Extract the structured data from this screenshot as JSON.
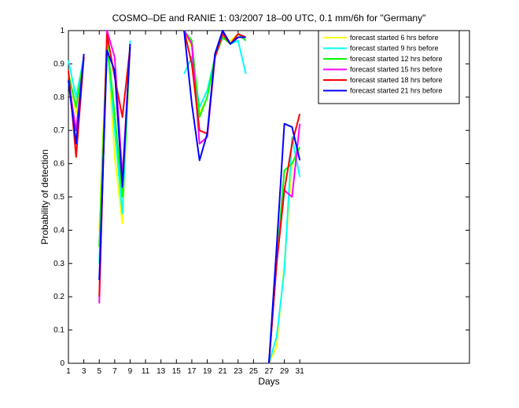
{
  "chart_data": {
    "type": "line",
    "title": "COSMO–DE and RANIE 1: 03/2007 18–00 UTC, 0.1 mm/6h for \"Germany\"",
    "x_label": "Days",
    "y_label": "Probability of detection",
    "x": [
      1,
      2,
      3,
      4,
      5,
      6,
      7,
      8,
      9,
      10,
      11,
      12,
      13,
      14,
      15,
      16,
      17,
      18,
      19,
      20,
      21,
      22,
      23,
      24,
      25,
      26,
      27,
      28,
      29,
      30,
      31
    ],
    "xlim": [
      1,
      53
    ],
    "xticks": [
      1,
      3,
      5,
      7,
      9,
      11,
      13,
      15,
      17,
      19,
      21,
      23,
      25,
      27,
      29,
      31
    ],
    "ylim": [
      0,
      1
    ],
    "yticks": [
      0,
      0.1,
      0.2,
      0.3,
      0.4,
      0.5,
      0.6,
      0.7,
      0.8,
      0.9,
      1
    ],
    "legend_position": "upper right",
    "series": [
      {
        "name": "forecast started 6 hrs before",
        "color": "#ffff00",
        "values": [
          0.88,
          0.75,
          0.92,
          null,
          0.4,
          0.98,
          0.62,
          0.42,
          0.95,
          null,
          null,
          null,
          null,
          null,
          null,
          1.0,
          0.95,
          0.75,
          0.8,
          0.92,
          0.98,
          0.97,
          0.99,
          0.98,
          null,
          null,
          0,
          0.05,
          0.3,
          0.6,
          0.64
        ]
      },
      {
        "name": "forecast started 9 hrs before",
        "color": "#00ffff",
        "values": [
          0.91,
          0.8,
          0.92,
          null,
          0.3,
          0.97,
          0.7,
          0.45,
          0.97,
          null,
          null,
          null,
          null,
          null,
          null,
          0.87,
          0.92,
          0.77,
          0.82,
          0.92,
          0.98,
          0.96,
          0.97,
          0.87,
          null,
          null,
          0,
          0.08,
          0.28,
          0.68,
          0.56
        ]
      },
      {
        "name": "forecast started 12 hrs before",
        "color": "#00ff00",
        "values": [
          0.87,
          0.77,
          0.92,
          null,
          0.35,
          0.97,
          0.75,
          0.5,
          0.95,
          null,
          null,
          null,
          null,
          null,
          null,
          1.0,
          0.97,
          0.74,
          0.8,
          0.92,
          0.98,
          0.96,
          0.99,
          0.97,
          null,
          null,
          0,
          0.3,
          0.58,
          0.6,
          0.65
        ]
      },
      {
        "name": "forecast started 15 hrs before",
        "color": "#ff00ff",
        "values": [
          0.85,
          0.7,
          0.92,
          null,
          0.18,
          1.0,
          0.92,
          0.56,
          0.95,
          null,
          null,
          null,
          null,
          null,
          null,
          1.0,
          0.96,
          0.66,
          0.68,
          0.92,
          0.99,
          0.96,
          0.98,
          0.98,
          null,
          null,
          0,
          0.3,
          0.52,
          0.5,
          0.72
        ]
      },
      {
        "name": "forecast started 18 hrs before",
        "color": "#ff0000",
        "values": [
          0.88,
          0.62,
          0.92,
          null,
          0.2,
          0.99,
          0.86,
          0.74,
          0.95,
          null,
          null,
          null,
          null,
          null,
          null,
          1.0,
          0.9,
          0.7,
          0.69,
          0.92,
          0.99,
          0.96,
          0.99,
          0.98,
          null,
          null,
          0,
          0.3,
          0.52,
          0.66,
          0.75
        ]
      },
      {
        "name": "forecast started 21 hrs before",
        "color": "#0000ff",
        "values": [
          0.85,
          0.66,
          0.93,
          null,
          0.25,
          0.94,
          0.88,
          0.53,
          0.96,
          null,
          null,
          null,
          null,
          null,
          null,
          1.0,
          0.78,
          0.61,
          0.69,
          0.93,
          1.0,
          0.96,
          0.98,
          0.98,
          null,
          null,
          0,
          0.35,
          0.72,
          0.71,
          0.61
        ]
      }
    ]
  }
}
